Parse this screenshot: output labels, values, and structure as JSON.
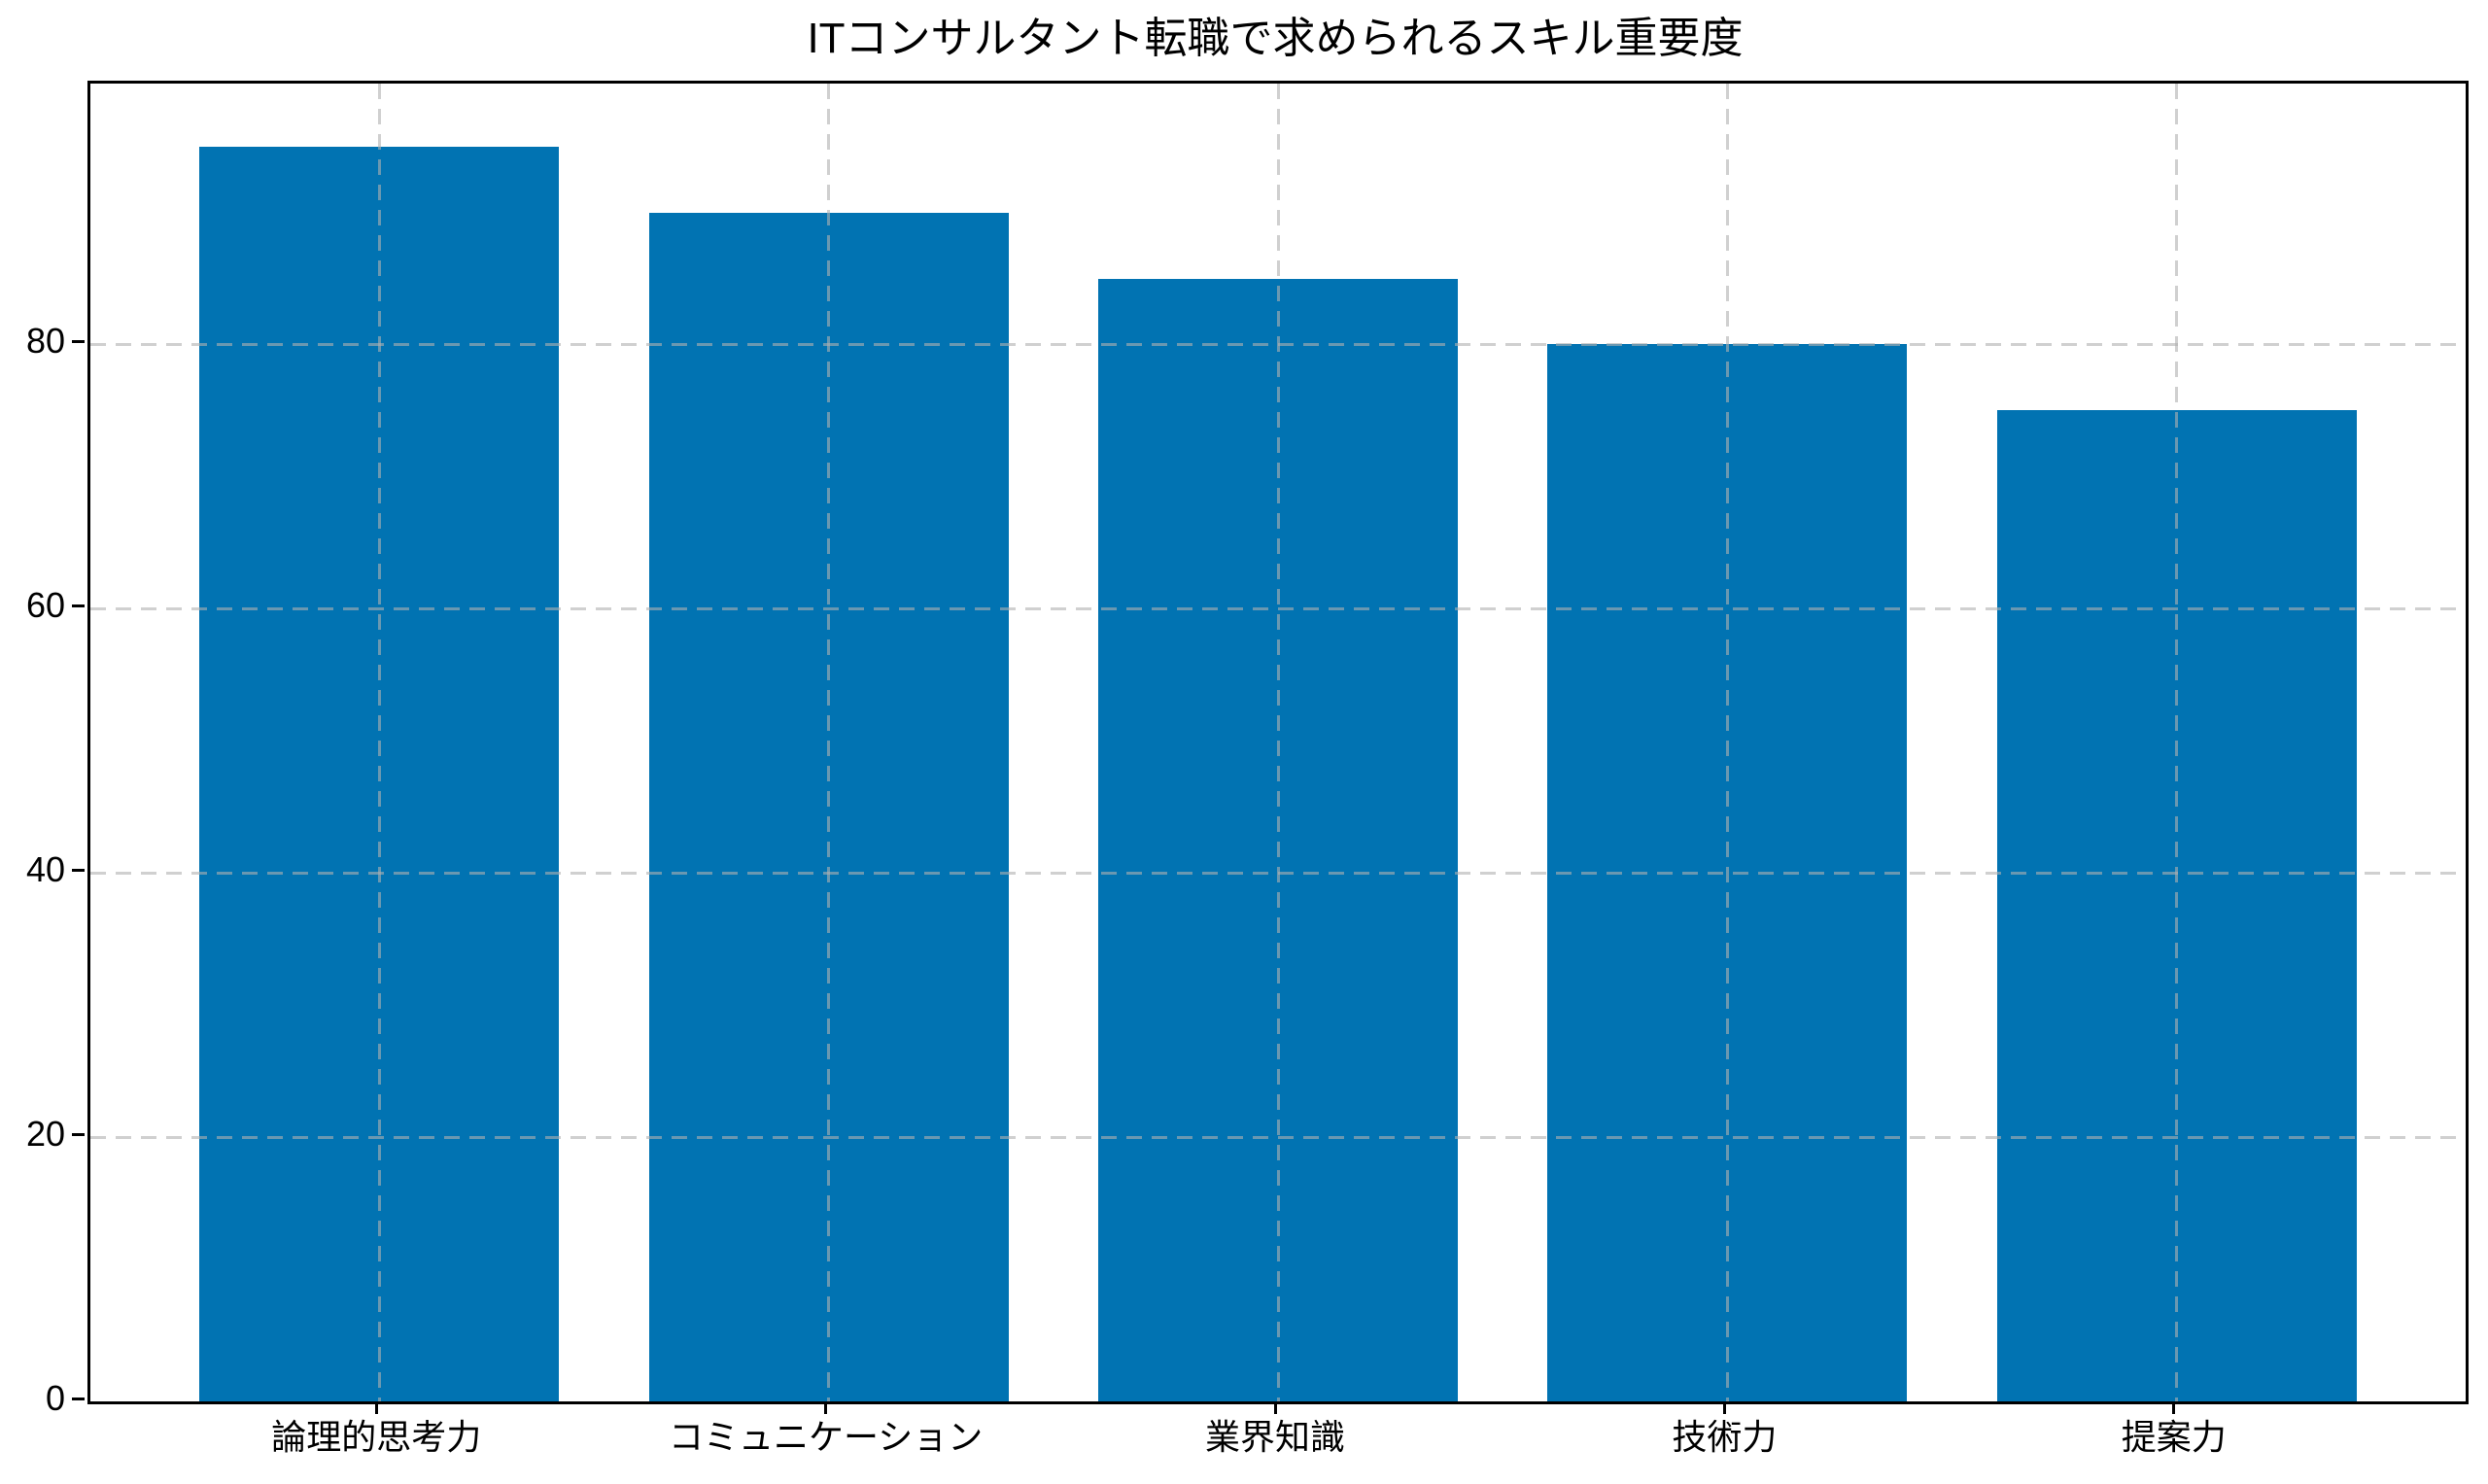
{
  "chart_data": {
    "type": "bar",
    "title": "ITコンサルタント転職で求められるスキル重要度",
    "categories": [
      "論理的思考力",
      "コミュニケーション",
      "業界知識",
      "技術力",
      "提案力"
    ],
    "values": [
      95,
      90,
      85,
      80,
      75
    ],
    "xlabel": "",
    "ylabel": "",
    "yticks": [
      0,
      20,
      40,
      60,
      80
    ],
    "ylim": [
      0,
      99.75
    ],
    "xlim": [
      -0.643,
      4.643
    ],
    "bar_width": 0.8,
    "legend": "none",
    "grid": {
      "on": true,
      "which": "both",
      "linestyle": "dashed",
      "drawn_above_bars": true
    },
    "colors": {
      "bar_fill": "#0173b2",
      "grid_line": "rgba(176,176,176,0.6)",
      "spine": "#000000",
      "text": "#000000",
      "background": "#ffffff"
    }
  }
}
